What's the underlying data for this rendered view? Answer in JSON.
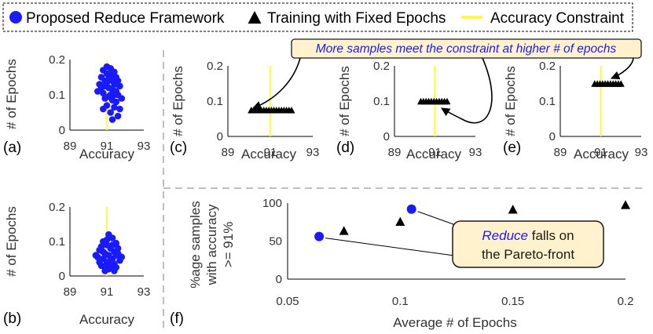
{
  "legend": {
    "items": [
      {
        "label": "Proposed Reduce Framework",
        "marker": "circle",
        "color": "#1a1aff"
      },
      {
        "label": "Training with Fixed Epochs",
        "marker": "triangle",
        "color": "#000000"
      },
      {
        "label": "Accuracy Constraint",
        "marker": "line",
        "color": "#ffff00"
      }
    ],
    "placement": "top"
  },
  "colors": {
    "reduce": "#1a1aff",
    "fixed": "#000000",
    "constraint": "#ffff00",
    "callout_fill": "#fff2cc",
    "callout_stroke": "#1a1a1a",
    "divider": "#bfbfbf"
  },
  "callouts": {
    "top": "More samples meet the constraint at higher # of epochs",
    "bottom_em": "Reduce",
    "bottom_rest": " falls on",
    "bottom_line2": "the Pareto-front"
  },
  "chart_data": [
    {
      "panel": "(a)",
      "type": "scatter",
      "marker": "circle",
      "xlabel": "Accuracy",
      "ylabel": "# of Epochs",
      "xlim": [
        89,
        93
      ],
      "ylim": [
        0,
        0.2
      ],
      "xticks": [
        "89",
        "91",
        "93"
      ],
      "yticks": [
        "0",
        "0.1",
        "0.2"
      ],
      "constraint_x": 91,
      "points": [
        [
          90.8,
          0.17
        ],
        [
          91.0,
          0.18
        ],
        [
          91.2,
          0.175
        ],
        [
          91.4,
          0.165
        ],
        [
          90.7,
          0.15
        ],
        [
          91.1,
          0.155
        ],
        [
          91.3,
          0.16
        ],
        [
          91.5,
          0.15
        ],
        [
          90.9,
          0.14
        ],
        [
          91.2,
          0.145
        ],
        [
          91.6,
          0.14
        ],
        [
          90.6,
          0.13
        ],
        [
          91.0,
          0.135
        ],
        [
          91.4,
          0.13
        ],
        [
          91.7,
          0.125
        ],
        [
          90.7,
          0.12
        ],
        [
          91.1,
          0.12
        ],
        [
          91.3,
          0.115
        ],
        [
          91.5,
          0.11
        ],
        [
          90.8,
          0.105
        ],
        [
          91.2,
          0.1
        ],
        [
          91.6,
          0.1
        ],
        [
          90.9,
          0.09
        ],
        [
          91.3,
          0.085
        ],
        [
          91.5,
          0.08
        ],
        [
          91.0,
          0.07
        ],
        [
          91.4,
          0.065
        ],
        [
          90.8,
          0.06
        ],
        [
          91.2,
          0.05
        ],
        [
          91.6,
          0.04
        ],
        [
          91.3,
          0.03
        ],
        [
          91.7,
          0.06
        ],
        [
          90.5,
          0.11
        ],
        [
          91.8,
          0.09
        ],
        [
          91.1,
          0.095
        ],
        [
          90.9,
          0.125
        ],
        [
          91.3,
          0.14
        ],
        [
          91.5,
          0.13
        ],
        [
          91.0,
          0.16
        ],
        [
          91.4,
          0.1
        ]
      ]
    },
    {
      "panel": "(b)",
      "type": "scatter",
      "marker": "circle",
      "xlabel": "Accuracy",
      "ylabel": "# of Epochs",
      "xlim": [
        89,
        93
      ],
      "ylim": [
        0,
        0.2
      ],
      "xticks": [
        "89",
        "91",
        "93"
      ],
      "yticks": [
        "0",
        "0.1",
        "0.2"
      ],
      "constraint_x": 91,
      "points": [
        [
          91.1,
          0.12
        ],
        [
          91.3,
          0.11
        ],
        [
          90.8,
          0.1
        ],
        [
          91.5,
          0.095
        ],
        [
          91.0,
          0.09
        ],
        [
          90.7,
          0.085
        ],
        [
          91.2,
          0.08
        ],
        [
          91.6,
          0.08
        ],
        [
          90.6,
          0.075
        ],
        [
          91.4,
          0.07
        ],
        [
          90.9,
          0.065
        ],
        [
          91.1,
          0.06
        ],
        [
          91.5,
          0.06
        ],
        [
          90.5,
          0.055
        ],
        [
          91.3,
          0.05
        ],
        [
          90.8,
          0.05
        ],
        [
          91.7,
          0.045
        ],
        [
          91.0,
          0.04
        ],
        [
          90.6,
          0.04
        ],
        [
          91.4,
          0.035
        ],
        [
          91.2,
          0.03
        ],
        [
          90.9,
          0.025
        ],
        [
          91.5,
          0.025
        ],
        [
          91.1,
          0.02
        ],
        [
          90.7,
          0.03
        ],
        [
          91.8,
          0.055
        ],
        [
          90.4,
          0.06
        ],
        [
          91.3,
          0.09
        ],
        [
          91.6,
          0.065
        ],
        [
          91.0,
          0.105
        ],
        [
          90.8,
          0.07
        ],
        [
          91.2,
          0.045
        ],
        [
          91.4,
          0.015
        ],
        [
          90.9,
          0.015
        ]
      ]
    },
    {
      "panel": "(c)",
      "type": "scatter",
      "marker": "triangle",
      "xlabel": "Accuracy",
      "ylabel": "# of Epochs",
      "xlim": [
        89,
        93
      ],
      "ylim": [
        0,
        0.2
      ],
      "xticks": [
        "89",
        "91",
        "93"
      ],
      "yticks": [
        "0",
        "0.1",
        "0.2"
      ],
      "constraint_x": 91,
      "epochs": 0.075,
      "acc_range": [
        90.1,
        92.0
      ]
    },
    {
      "panel": "(d)",
      "type": "scatter",
      "marker": "triangle",
      "xlabel": "Accuracy",
      "ylabel": "# of Epochs",
      "xlim": [
        89,
        93
      ],
      "ylim": [
        0,
        0.2
      ],
      "xticks": [
        "89",
        "91",
        "93"
      ],
      "yticks": [
        "0",
        "0.1",
        "0.2"
      ],
      "constraint_x": 91,
      "epochs": 0.1,
      "acc_range": [
        90.3,
        91.6
      ]
    },
    {
      "panel": "(e)",
      "type": "scatter",
      "marker": "triangle",
      "xlabel": "Accuracy",
      "ylabel": "# of Epochs",
      "xlim": [
        89,
        93
      ],
      "ylim": [
        0,
        0.2
      ],
      "xticks": [
        "89",
        "91",
        "93"
      ],
      "yticks": [
        "0",
        "0.1",
        "0.2"
      ],
      "constraint_x": 91,
      "epochs": 0.15,
      "acc_range": [
        90.7,
        92.0
      ]
    },
    {
      "panel": "(f)",
      "type": "scatter",
      "xlabel": "Average # of Epochs",
      "ylabel_lines": [
        "%age samples",
        "with accuracy",
        ">= 91%"
      ],
      "xlim": [
        0.05,
        0.2
      ],
      "ylim": [
        0,
        100
      ],
      "xticks": [
        "0.05",
        "0.1",
        "0.15",
        "0.2"
      ],
      "yticks": [
        "0",
        "50",
        "100"
      ],
      "series": [
        {
          "marker": "circle",
          "x": [
            0.064,
            0.105
          ],
          "y": [
            56,
            92
          ]
        },
        {
          "marker": "triangle",
          "x": [
            0.075,
            0.1,
            0.15,
            0.2
          ],
          "y": [
            64,
            76,
            92,
            98
          ]
        }
      ]
    }
  ]
}
